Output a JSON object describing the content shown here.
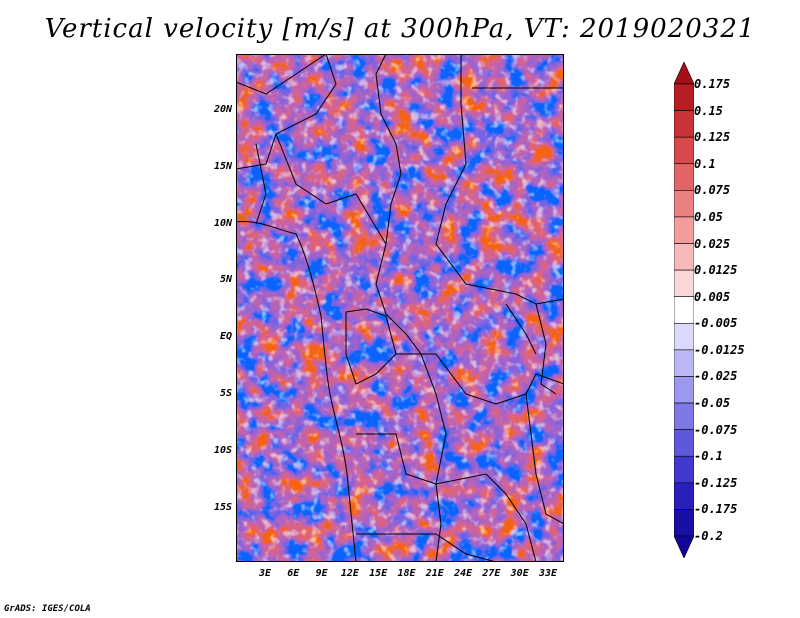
{
  "title": "Vertical velocity [m/s] at 300hPa, VT: 2019020321",
  "credit": "GrADS: IGES/COLA",
  "latitude_labels": [
    "20N",
    "15N",
    "10N",
    "5N",
    "EQ",
    "5S",
    "10S",
    "15S"
  ],
  "longitude_labels": [
    "3E",
    "6E",
    "9E",
    "12E",
    "15E",
    "18E",
    "21E",
    "24E",
    "27E",
    "30E",
    "33E"
  ],
  "colorbar": {
    "labels": [
      "0.175",
      "0.15",
      "0.125",
      "0.1",
      "0.075",
      "0.05",
      "0.025",
      "0.0125",
      "0.005",
      "-0.005",
      "-0.0125",
      "-0.025",
      "-0.05",
      "-0.075",
      "-0.1",
      "-0.125",
      "-0.175",
      "-0.2"
    ],
    "colors": [
      "#a50f15",
      "#b81d22",
      "#c93236",
      "#d84a4a",
      "#e36464",
      "#eb8080",
      "#f29c9c",
      "#f7baba",
      "#fbd8d8",
      "#ffffff",
      "#dad8fb",
      "#bcb8f5",
      "#9c98ee",
      "#7e78e6",
      "#5f58dc",
      "#4238cf",
      "#2a1fbd",
      "#1a0fa5",
      "#12069a"
    ]
  }
}
